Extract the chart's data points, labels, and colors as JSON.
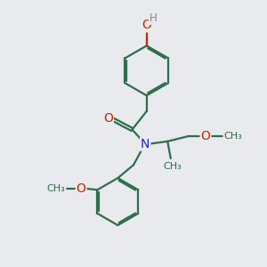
{
  "bg_color": "#e8eaed",
  "bond_color": "#2d6e4e",
  "O_color": "#cc2200",
  "N_color": "#2222cc",
  "H_color": "#888888",
  "line_width": 1.6,
  "font_size": 9.5,
  "fig_size": [
    3.0,
    3.0
  ],
  "dpi": 100,
  "xlim": [
    0,
    10
  ],
  "ylim": [
    0,
    10
  ]
}
